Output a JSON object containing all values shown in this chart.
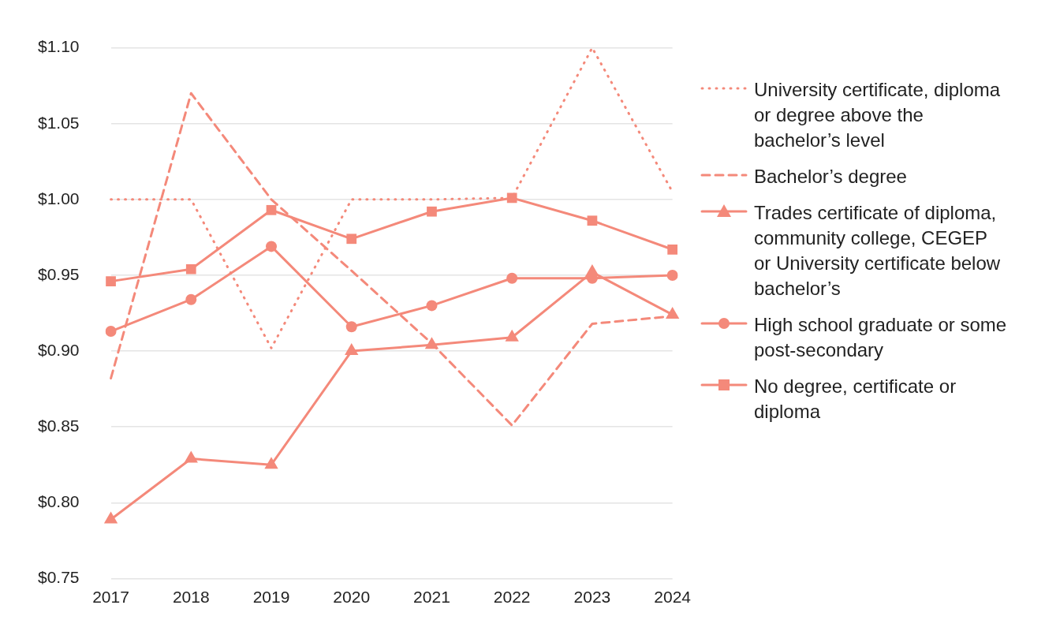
{
  "chart_data": {
    "type": "line",
    "categories": [
      "2017",
      "2018",
      "2019",
      "2020",
      "2021",
      "2022",
      "2023",
      "2024"
    ],
    "ylim": [
      0.75,
      1.1
    ],
    "yticks": [
      {
        "value": 0.75,
        "label": "$0.75"
      },
      {
        "value": 0.8,
        "label": "$0.80"
      },
      {
        "value": 0.85,
        "label": "$0.85"
      },
      {
        "value": 0.9,
        "label": "$0.90"
      },
      {
        "value": 0.95,
        "label": "$0.95"
      },
      {
        "value": 1.0,
        "label": "$1.00"
      },
      {
        "value": 1.05,
        "label": "$1.05"
      },
      {
        "value": 1.1,
        "label": "$1.10"
      }
    ],
    "grid": "y",
    "legend": "right",
    "series": [
      {
        "name": "University certificate, diploma or degree above the bachelor’s level",
        "color": "#f4897a",
        "line_style": "dotted",
        "marker": "none",
        "values": [
          1.0,
          1.0,
          0.902,
          1.0,
          1.0,
          1.001,
          1.1,
          1.005
        ]
      },
      {
        "name": "Bachelor’s degree",
        "color": "#f4897a",
        "line_style": "dashed",
        "marker": "none",
        "values": [
          0.882,
          1.07,
          1.0,
          0.953,
          0.905,
          0.851,
          0.918,
          0.923
        ]
      },
      {
        "name": "Trades certificate of diploma, community college, CEGEP or University certificate below bachelor’s",
        "color": "#f4897a",
        "line_style": "solid",
        "marker": "triangle",
        "values": [
          0.789,
          0.829,
          0.825,
          0.9,
          0.904,
          0.909,
          0.952,
          0.924
        ]
      },
      {
        "name": "High school graduate or some post-secondary",
        "color": "#f4897a",
        "line_style": "solid",
        "marker": "circle",
        "values": [
          0.913,
          0.934,
          0.969,
          0.916,
          0.93,
          0.948,
          0.948,
          0.95
        ]
      },
      {
        "name": "No degree, certificate or diploma",
        "color": "#f4897a",
        "line_style": "solid",
        "marker": "square",
        "values": [
          0.946,
          0.954,
          0.993,
          0.974,
          0.992,
          1.001,
          0.986,
          0.967
        ]
      }
    ]
  }
}
